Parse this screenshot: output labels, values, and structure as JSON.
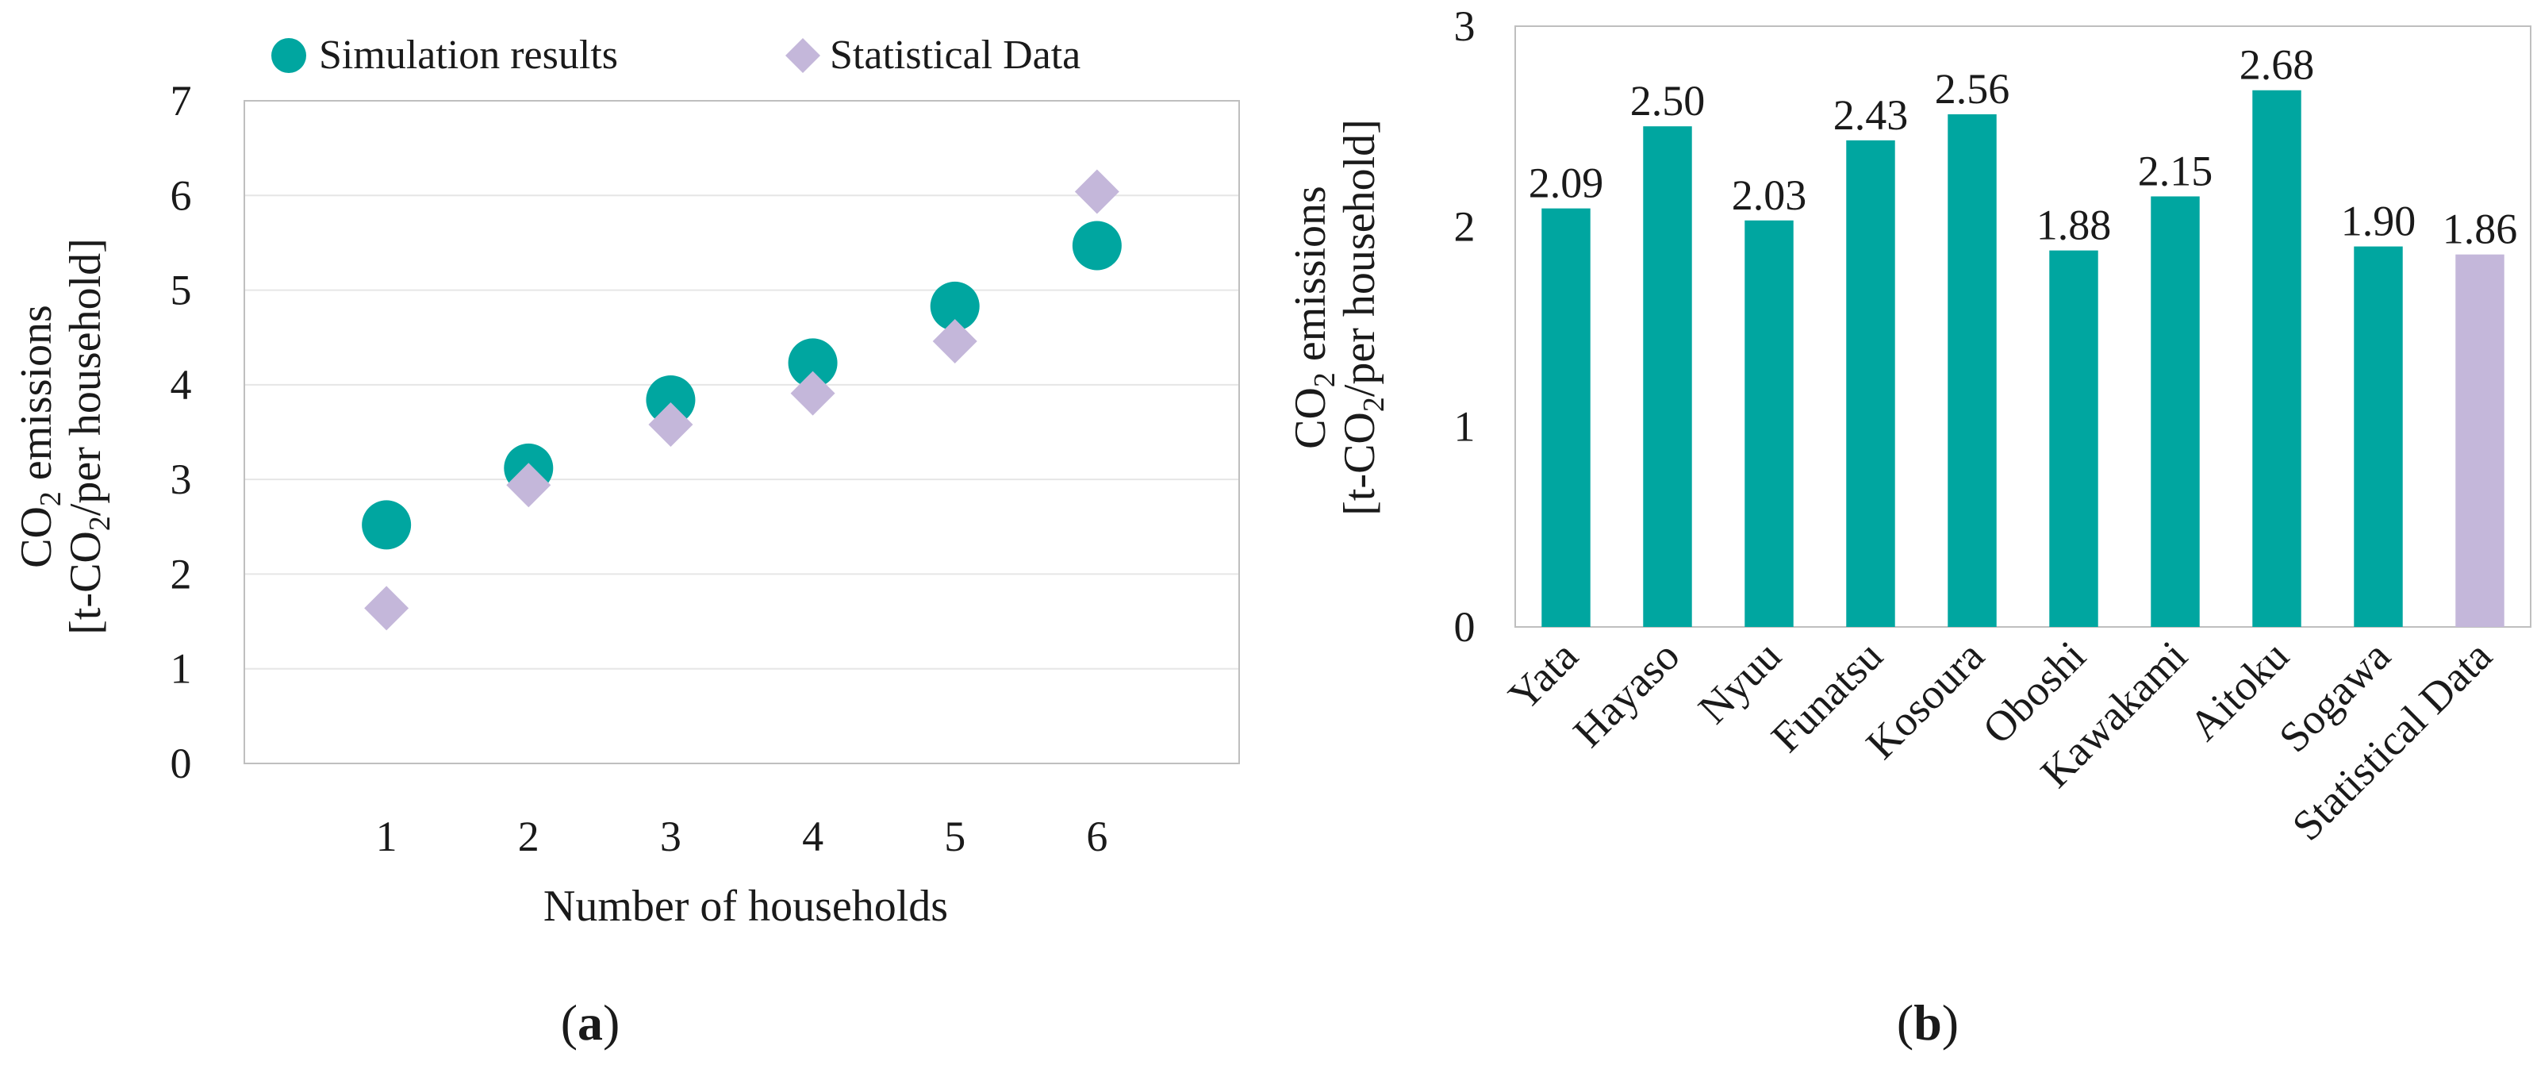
{
  "colors": {
    "simulation": "#00a6a0",
    "statistical": "#c4b7da",
    "grid": "#e6e6e6",
    "axis": "#bfbfbf"
  },
  "panel_labels": {
    "a": "a",
    "b": "b"
  },
  "chart_data": [
    {
      "type": "scatter",
      "panel": "a",
      "xlabel": "Number of households",
      "ylabel_line1_prefix": "CO",
      "ylabel_line1_sub": "2",
      "ylabel_line1_suffix": " emissions",
      "ylabel_line2_prefix": "[t-CO",
      "ylabel_line2_sub": "2",
      "ylabel_line2_suffix": "/per household]",
      "xlim": [
        0,
        7
      ],
      "ylim": [
        0,
        7
      ],
      "xticks": [
        1,
        2,
        3,
        4,
        5,
        6
      ],
      "yticks": [
        0,
        1,
        2,
        3,
        4,
        5,
        6,
        7
      ],
      "grid": true,
      "legend_position": "top",
      "series": [
        {
          "name": "Simulation results",
          "marker": "circle",
          "x": [
            1,
            2,
            3,
            4,
            5,
            6
          ],
          "y": [
            2.52,
            3.12,
            3.84,
            4.23,
            4.83,
            5.47
          ]
        },
        {
          "name": "Statistical Data",
          "marker": "diamond",
          "x": [
            1,
            2,
            3,
            4,
            5,
            6
          ],
          "y": [
            1.64,
            2.94,
            3.58,
            3.91,
            4.46,
            6.04
          ]
        }
      ]
    },
    {
      "type": "bar",
      "panel": "b",
      "ylabel_line1_prefix": "CO",
      "ylabel_line1_sub": "2",
      "ylabel_line1_suffix": " emissions",
      "ylabel_line2_prefix": "[t-CO",
      "ylabel_line2_sub": "2",
      "ylabel_line2_suffix": "/per household]",
      "ylim": [
        0,
        3
      ],
      "yticks": [
        0,
        1,
        2,
        3
      ],
      "grid": false,
      "categories": [
        "Yata",
        "Hayaso",
        "Nyuu",
        "Funatsu",
        "Kosoura",
        "Oboshi",
        "Kawakami",
        "Aitoku",
        "Sogawa",
        "Statistical Data"
      ],
      "values": [
        2.09,
        2.5,
        2.03,
        2.43,
        2.56,
        1.88,
        2.15,
        2.68,
        1.9,
        1.86
      ],
      "labels": [
        "2.09",
        "2.50",
        "2.03",
        "2.43",
        "2.56",
        "1.88",
        "2.15",
        "2.68",
        "1.90",
        "1.86"
      ],
      "highlight_last": true
    }
  ]
}
